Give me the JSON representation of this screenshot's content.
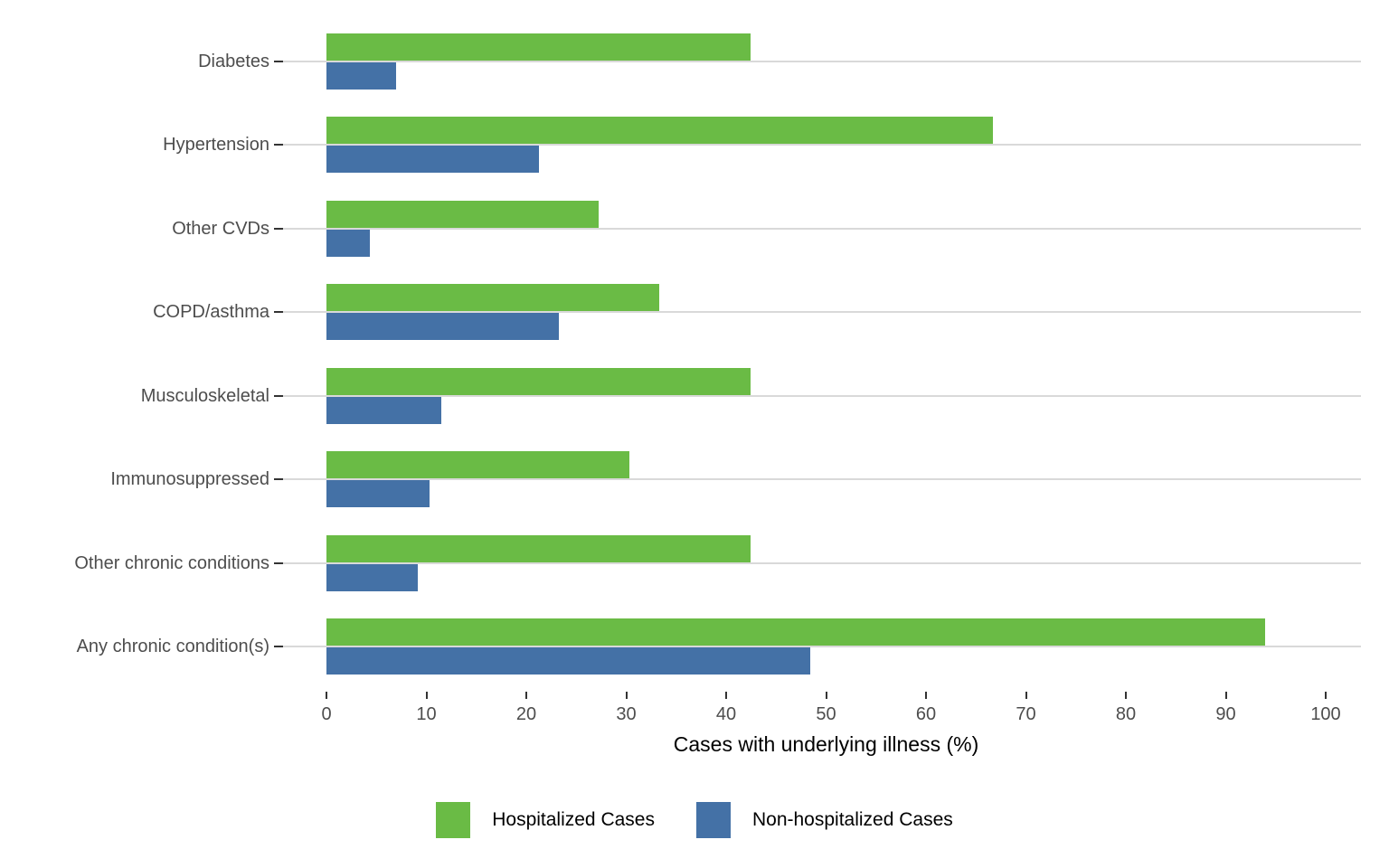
{
  "chart_data": {
    "type": "bar",
    "orientation": "horizontal",
    "title": "",
    "xlabel": "Cases with underlying illness (%)",
    "ylabel": "",
    "categories": [
      "Diabetes",
      "Hypertension",
      "Other CVDs",
      "COPD/asthma",
      "Musculoskeletal",
      "Immunosuppressed",
      "Other chronic conditions",
      "Any chronic condition(s)"
    ],
    "series": [
      {
        "name": "Hospitalized Cases",
        "color": "#6abb45",
        "values": [
          42.4,
          66.7,
          27.2,
          33.3,
          42.4,
          30.3,
          42.4,
          93.9
        ]
      },
      {
        "name": "Non-hospitalized Cases",
        "color": "#4471a6",
        "values": [
          7.0,
          21.3,
          4.3,
          23.3,
          11.5,
          10.3,
          9.1,
          48.4
        ]
      }
    ],
    "x_ticks": [
      0,
      10,
      20,
      30,
      40,
      50,
      60,
      70,
      80,
      90,
      100
    ],
    "xlim": [
      0,
      103.5
    ],
    "grid": "horizontal-category-lines",
    "legend_position": "bottom",
    "colors": {
      "gridline": "#d9d9d9",
      "tick": "#333333",
      "axis_text": "#4d4d4d",
      "title_text": "#000000"
    }
  }
}
